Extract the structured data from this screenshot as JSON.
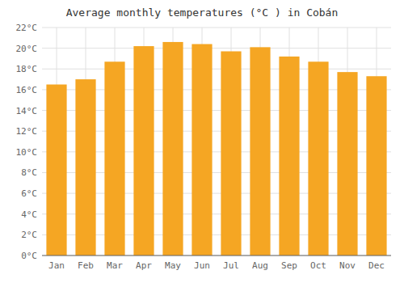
{
  "chart_data": {
    "type": "bar",
    "title": "Average monthly temperatures (°C ) in Cobán",
    "categories": [
      "Jan",
      "Feb",
      "Mar",
      "Apr",
      "May",
      "Jun",
      "Jul",
      "Aug",
      "Sep",
      "Oct",
      "Nov",
      "Dec"
    ],
    "values": [
      16.5,
      17.0,
      18.7,
      20.2,
      20.6,
      20.4,
      19.7,
      20.1,
      19.2,
      18.7,
      17.7,
      17.3
    ],
    "color": "#F5A623",
    "ylim": [
      0,
      22
    ],
    "yticks": [
      {
        "value": 0,
        "label": "0°C"
      },
      {
        "value": 2,
        "label": "2°C"
      },
      {
        "value": 4,
        "label": "4°C"
      },
      {
        "value": 6,
        "label": "6°C"
      },
      {
        "value": 8,
        "label": "8°C"
      },
      {
        "value": 10,
        "label": "10°C"
      },
      {
        "value": 12,
        "label": "12°C"
      },
      {
        "value": 14,
        "label": "14°C"
      },
      {
        "value": 16,
        "label": "16°C"
      },
      {
        "value": 18,
        "label": "18°C"
      },
      {
        "value": 20,
        "label": "20°C"
      },
      {
        "value": 22,
        "label": "22°C"
      }
    ],
    "grid": true
  }
}
